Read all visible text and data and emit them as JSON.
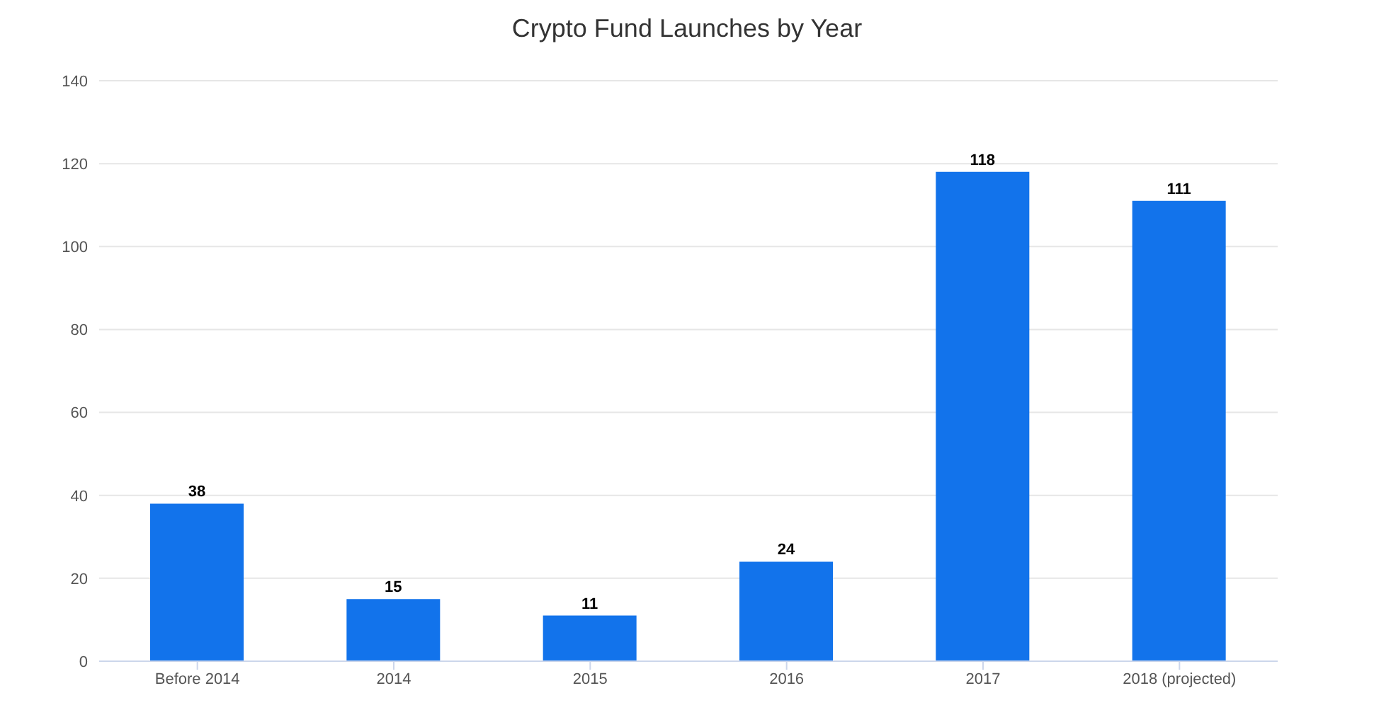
{
  "chart_data": {
    "type": "bar",
    "title": "Crypto Fund Launches by Year",
    "categories": [
      "Before 2014",
      "2014",
      "2015",
      "2016",
      "2017",
      "2018 (projected)"
    ],
    "values": [
      38,
      15,
      11,
      24,
      118,
      111
    ],
    "color": "#1273eb",
    "ylim": [
      0,
      140
    ],
    "yticks": [
      0,
      20,
      40,
      60,
      80,
      100,
      120,
      140
    ],
    "grid": "y",
    "data_labels": true
  }
}
